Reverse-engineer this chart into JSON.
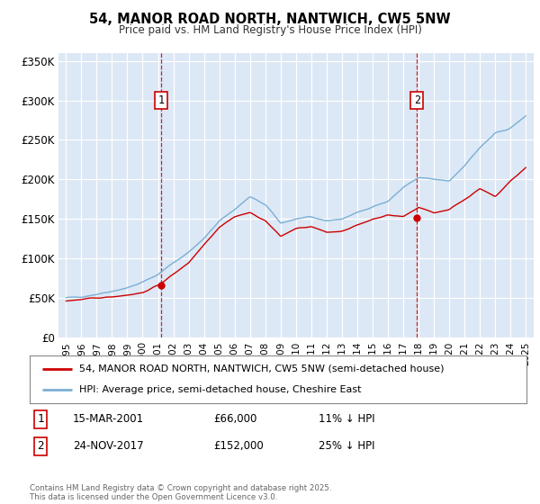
{
  "title": "54, MANOR ROAD NORTH, NANTWICH, CW5 5NW",
  "subtitle": "Price paid vs. HM Land Registry's House Price Index (HPI)",
  "legend_line1": "54, MANOR ROAD NORTH, NANTWICH, CW5 5NW (semi-detached house)",
  "legend_line2": "HPI: Average price, semi-detached house, Cheshire East",
  "footnote": "Contains HM Land Registry data © Crown copyright and database right 2025.\nThis data is licensed under the Open Government Licence v3.0.",
  "marker1_label": "1",
  "marker1_date": "15-MAR-2001",
  "marker1_price": "£66,000",
  "marker1_hpi": "11% ↓ HPI",
  "marker1_x": 2001.21,
  "marker1_y": 66000,
  "marker2_label": "2",
  "marker2_date": "24-NOV-2017",
  "marker2_price": "£152,000",
  "marker2_hpi": "25% ↓ HPI",
  "marker2_x": 2017.9,
  "marker2_y": 152000,
  "red_color": "#cc0000",
  "blue_color": "#7aafd4",
  "plot_bg_color": "#dce8f5",
  "grid_color": "#ffffff",
  "ylim": [
    0,
    360000
  ],
  "xlim": [
    1994.5,
    2025.5
  ],
  "yticks": [
    0,
    50000,
    100000,
    150000,
    200000,
    250000,
    300000,
    350000
  ],
  "ytick_labels": [
    "£0",
    "£50K",
    "£100K",
    "£150K",
    "£200K",
    "£250K",
    "£300K",
    "£350K"
  ],
  "xticks": [
    1995,
    1996,
    1997,
    1998,
    1999,
    2000,
    2001,
    2002,
    2003,
    2004,
    2005,
    2006,
    2007,
    2008,
    2009,
    2010,
    2011,
    2012,
    2013,
    2014,
    2015,
    2016,
    2017,
    2018,
    2019,
    2020,
    2021,
    2022,
    2023,
    2024,
    2025
  ],
  "hpi_anchors_x": [
    1995,
    1996,
    1997,
    1998,
    1999,
    2000,
    2001,
    2002,
    2003,
    2004,
    2005,
    2006,
    2007,
    2008,
    2009,
    2010,
    2011,
    2012,
    2013,
    2014,
    2015,
    2016,
    2017,
    2018,
    2019,
    2020,
    2021,
    2022,
    2023,
    2024,
    2025
  ],
  "hpi_anchors_y": [
    50000,
    52000,
    55000,
    59000,
    63000,
    70000,
    80000,
    95000,
    108000,
    125000,
    148000,
    162000,
    178000,
    168000,
    145000,
    150000,
    152000,
    148000,
    150000,
    158000,
    166000,
    172000,
    190000,
    202000,
    200000,
    198000,
    218000,
    240000,
    258000,
    265000,
    280000
  ],
  "price_anchors_x": [
    1995,
    1996,
    1997,
    1998,
    1999,
    2000,
    2001,
    2002,
    2003,
    2004,
    2005,
    2006,
    2007,
    2008,
    2009,
    2010,
    2011,
    2012,
    2013,
    2014,
    2015,
    2016,
    2017,
    2018,
    2019,
    2020,
    2021,
    2022,
    2023,
    2024,
    2025
  ],
  "price_anchors_y": [
    47000,
    48000,
    50000,
    52000,
    54000,
    57000,
    66000,
    80000,
    95000,
    118000,
    140000,
    153000,
    158000,
    148000,
    128000,
    138000,
    140000,
    133000,
    135000,
    142000,
    150000,
    155000,
    153000,
    165000,
    158000,
    162000,
    175000,
    188000,
    178000,
    198000,
    215000
  ]
}
